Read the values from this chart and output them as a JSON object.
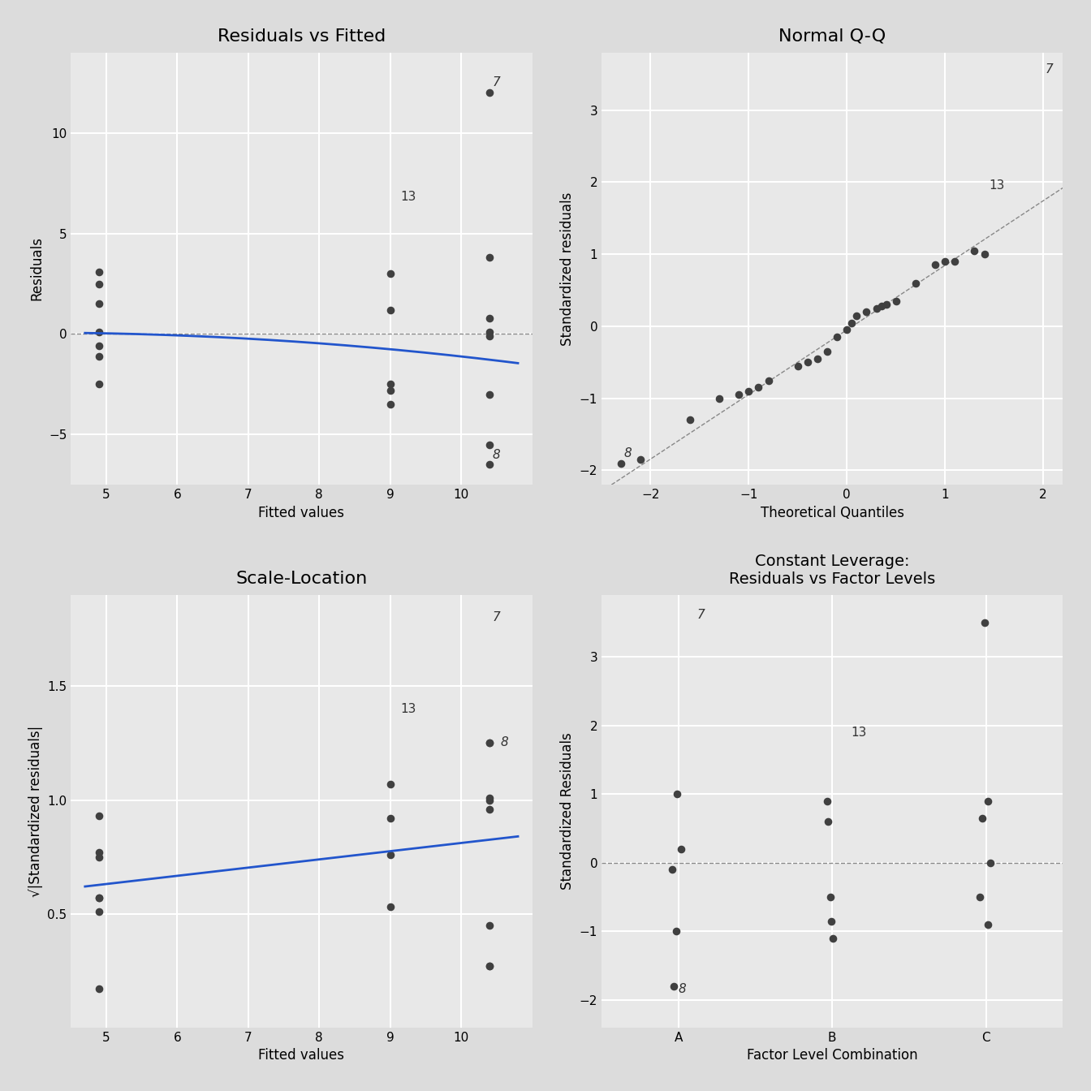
{
  "background_color": "#dcdcdc",
  "panel_bg": "#e8e8e8",
  "grid_color": "white",
  "point_color": "#404040",
  "point_size": 35,
  "blue_line_color": "#2255cc",
  "dashed_line_color": "#888888",
  "plot1_title": "Residuals vs Fitted",
  "plot1_xlabel": "Fitted values",
  "plot1_ylabel": "Residuals",
  "plot1_xlim": [
    4.5,
    11.0
  ],
  "plot1_ylim": [
    -7.5,
    14.0
  ],
  "plot1_yticks": [
    -5,
    0,
    5,
    10
  ],
  "plot1_xticks": [
    5,
    6,
    7,
    8,
    9,
    10
  ],
  "fitted_A": 4.9,
  "fitted_B": 9.0,
  "fitted_C": 10.4,
  "residuals_A": [
    3.1,
    2.5,
    1.5,
    0.1,
    -0.6,
    -1.1,
    -2.5
  ],
  "residuals_B": [
    3.0,
    1.2,
    -2.5,
    -2.8,
    -3.5
  ],
  "residuals_C": [
    12.0,
    3.8,
    0.8,
    0.1,
    -0.1,
    -3.0,
    -5.5,
    -6.5
  ],
  "plot2_title": "Normal Q-Q",
  "plot2_xlabel": "Theoretical Quantiles",
  "plot2_ylabel": "Standardized residuals",
  "plot2_xlim": [
    -2.5,
    2.2
  ],
  "plot2_ylim": [
    -2.2,
    3.8
  ],
  "plot2_yticks": [
    -2,
    -1,
    0,
    1,
    2,
    3
  ],
  "plot2_xticks": [
    -2,
    -1,
    0,
    1,
    2
  ],
  "qq_theoretical": [
    -2.3,
    -2.1,
    -1.6,
    -1.3,
    -1.1,
    -1.0,
    -0.9,
    -0.8,
    -0.5,
    -0.4,
    -0.3,
    -0.2,
    -0.1,
    0.0,
    0.05,
    0.1,
    0.2,
    0.3,
    0.35,
    0.4,
    0.5,
    0.7,
    0.9,
    1.0,
    1.1,
    1.3,
    1.4
  ],
  "qq_sample": [
    -1.9,
    -1.85,
    -1.3,
    -1.0,
    -0.95,
    -0.9,
    -0.85,
    -0.75,
    -0.55,
    -0.5,
    -0.45,
    -0.35,
    -0.15,
    -0.05,
    0.05,
    0.15,
    0.2,
    0.25,
    0.28,
    0.3,
    0.35,
    0.6,
    0.85,
    0.9,
    0.9,
    1.05,
    1.0
  ],
  "plot3_title": "Scale-Location",
  "plot3_xlabel": "Fitted values",
  "plot3_ylabel": "√|Standardized residuals|",
  "plot3_xlim": [
    4.5,
    11.0
  ],
  "plot3_ylim": [
    0.0,
    1.9
  ],
  "plot3_yticks": [
    0.5,
    1.0,
    1.5
  ],
  "plot3_xticks": [
    5,
    6,
    7,
    8,
    9,
    10
  ],
  "sqrt_fit_A": [
    4.9,
    4.9,
    4.9,
    4.9,
    4.9,
    4.9,
    4.9
  ],
  "sqrt_fit_B": [
    9.0,
    9.0,
    9.0,
    9.0
  ],
  "sqrt_fit_C": [
    10.4,
    10.4,
    10.4,
    10.4,
    10.4,
    10.4,
    10.4,
    10.4
  ],
  "sqrt_std_resid_A": [
    0.93,
    0.77,
    0.75,
    0.57,
    0.57,
    0.51,
    0.17
  ],
  "sqrt_std_resid_B": [
    1.07,
    0.92,
    0.76,
    0.53
  ],
  "sqrt_std_resid_C": [
    1.25,
    1.25,
    1.01,
    1.0,
    0.96,
    0.45,
    0.27,
    0.27
  ],
  "plot4_title": "Constant Leverage:\nResiduals vs Factor Levels",
  "plot4_xlabel": "Factor Level Combination",
  "plot4_ylabel": "Standardized Residuals",
  "plot4_ylim": [
    -2.4,
    3.9
  ],
  "plot4_yticks": [
    -2,
    -1,
    0,
    1,
    2,
    3
  ],
  "std_resid_A": [
    1.0,
    0.2,
    -0.1,
    -1.0,
    -1.8
  ],
  "std_resid_B": [
    0.9,
    0.6,
    -0.5,
    -0.85,
    -1.1
  ],
  "std_resid_C": [
    3.5,
    0.9,
    0.65,
    0.0,
    -0.5,
    -0.9
  ],
  "annot_color": "#333333",
  "annot_fontsize": 11
}
